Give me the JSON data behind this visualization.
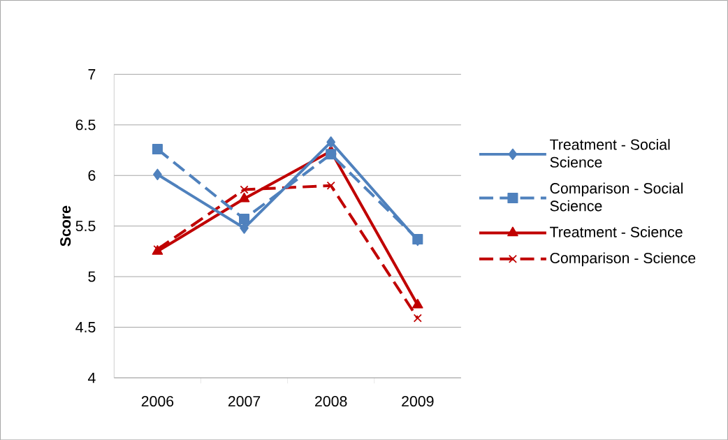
{
  "chart_data": {
    "type": "line",
    "ylabel": "Score",
    "categories": [
      "2006",
      "2007",
      "2008",
      "2009"
    ],
    "series": [
      {
        "name": "Treatment - Social Science",
        "color": "#4f81bd",
        "marker": "diamond",
        "line_style": "solid",
        "values": [
          6.01,
          5.48,
          6.33,
          5.36
        ]
      },
      {
        "name": "Comparison - Social Science",
        "color": "#4f81bd",
        "marker": "square",
        "line_style": "dashed",
        "values": [
          6.26,
          5.57,
          6.21,
          5.37
        ]
      },
      {
        "name": "Treatment - Science",
        "color": "#c00000",
        "marker": "triangle",
        "line_style": "solid",
        "values": [
          5.25,
          5.77,
          6.24,
          4.72
        ]
      },
      {
        "name": "Comparison - Science",
        "color": "#c00000",
        "marker": "cross",
        "line_style": "dashed",
        "values": [
          5.27,
          5.86,
          5.9,
          4.59
        ]
      }
    ],
    "ylim": [
      4,
      7
    ],
    "yticks": [
      4,
      4.5,
      5,
      5.5,
      6,
      6.5,
      7
    ],
    "grid": "y",
    "legend": "right"
  }
}
